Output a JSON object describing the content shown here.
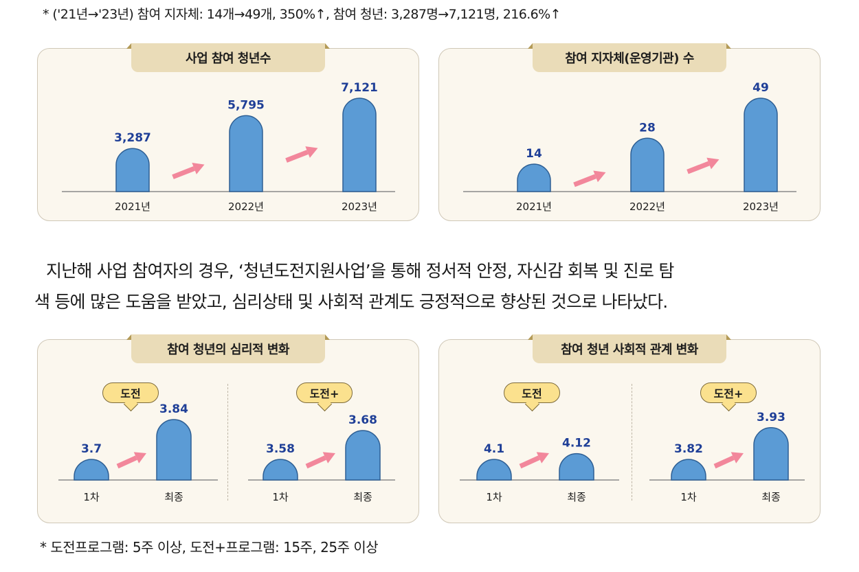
{
  "top_note": "* ('21년→'23년) 참여 지자체: 14개→49개, 350%↑, 참여 청년: 3,287명→7,121명, 216.6%↑",
  "paragraph": {
    "line1": "지난해 사업 참여자의 경우, ‘청년도전지원사업’을 통해 정서적 안정, 자신감 회복 및 진로 탐",
    "line2": "색 등에 많은 도움을 받았고, 심리상태 및 사회적 관계도 긍정적으로 향상된 것으로 나타났다."
  },
  "bottom_note": "* 도전프로그램: 5주 이상, 도전+프로그램: 15주, 25주 이상",
  "colors": {
    "bar": "#5b9bd5",
    "bar_outline": "#2e5f94",
    "value_text": "#1f3f97",
    "arrow": "#f2879b",
    "card_bg": "#fbf7ee",
    "tab_bg": "#eadcb8",
    "bubble_bg": "#fbe18e"
  },
  "chart_data": [
    {
      "type": "bar",
      "title": "사업 참여 청년수",
      "categories": [
        "2021년",
        "2022년",
        "2023년"
      ],
      "values": [
        3287,
        5795,
        7121
      ],
      "value_labels": [
        "3,287",
        "5,795",
        "7,121"
      ]
    },
    {
      "type": "bar",
      "title": "참여 지자체(운영기관) 수",
      "categories": [
        "2021년",
        "2022년",
        "2023년"
      ],
      "values": [
        14,
        28,
        49
      ],
      "value_labels": [
        "14",
        "28",
        "49"
      ]
    },
    {
      "type": "bar",
      "title": "참여 청년의 심리적 변화",
      "groups": [
        {
          "name": "도전",
          "categories": [
            "1차",
            "최종"
          ],
          "values": [
            3.7,
            3.84
          ],
          "value_labels": [
            "3.7",
            "3.84"
          ]
        },
        {
          "name": "도전+",
          "categories": [
            "1차",
            "최종"
          ],
          "values": [
            3.58,
            3.68
          ],
          "value_labels": [
            "3.58",
            "3.68"
          ]
        }
      ]
    },
    {
      "type": "bar",
      "title": "참여 청년 사회적 관계 변화",
      "groups": [
        {
          "name": "도전",
          "categories": [
            "1차",
            "최종"
          ],
          "values": [
            4.1,
            4.12
          ],
          "value_labels": [
            "4.1",
            "4.12"
          ]
        },
        {
          "name": "도전+",
          "categories": [
            "1차",
            "최종"
          ],
          "values": [
            3.82,
            3.93
          ],
          "value_labels": [
            "3.82",
            "3.93"
          ]
        }
      ]
    }
  ]
}
